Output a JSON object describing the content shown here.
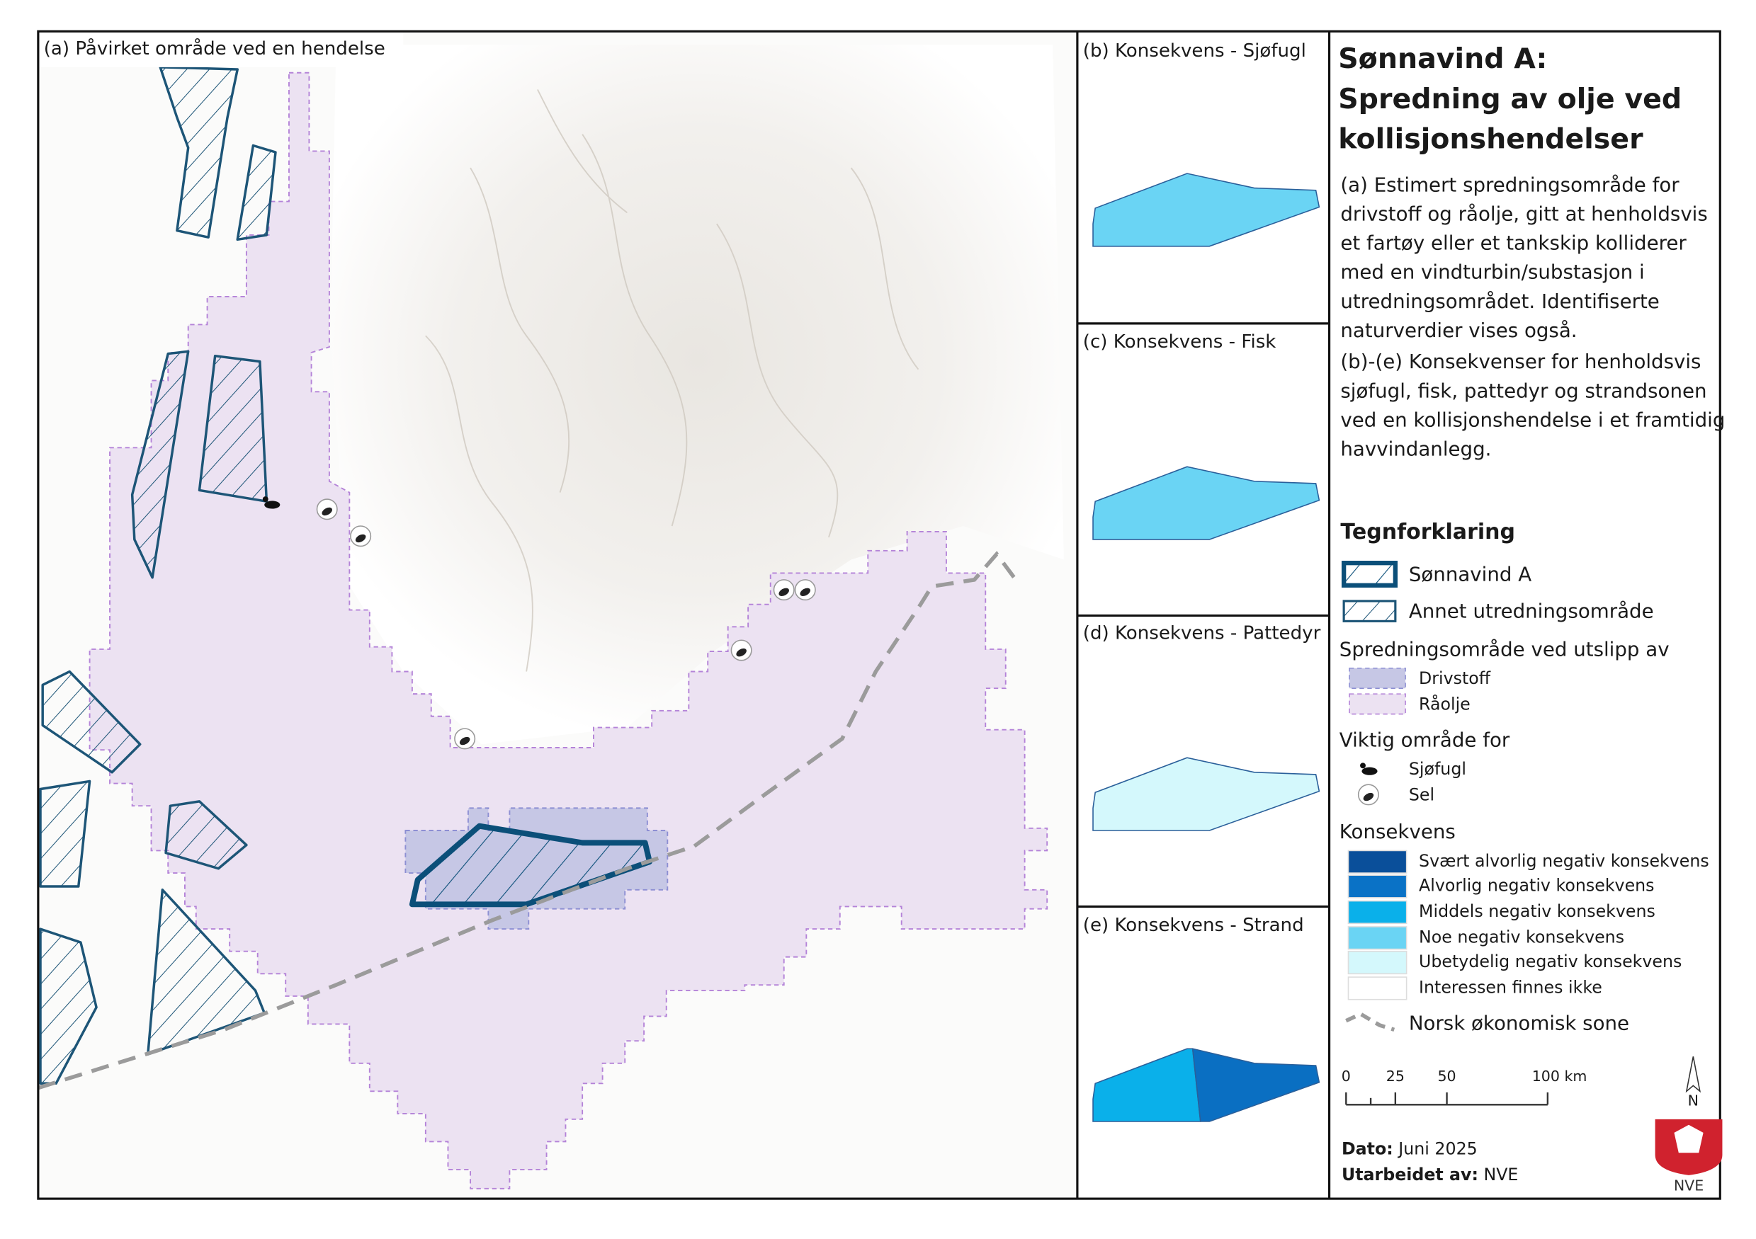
{
  "map_panel": {
    "label": "(a) Påvirket område ved en hendelse"
  },
  "small_panels": [
    {
      "label": "(b) Konsekvens - Sjøfugl"
    },
    {
      "label": "(c) Konsekvens - Fisk"
    },
    {
      "label": "(d) Konsekvens - Pattedyr"
    },
    {
      "label": "(e) Konsekvens - Strand"
    }
  ],
  "header": {
    "title": [
      "Sønnavind A:",
      "Spredning av olje ved",
      "kollisjonshendelser"
    ]
  },
  "description": [
    [
      "(a) Estimert spredningsområde for",
      "drivstoff og råolje, gitt at henholdsvis",
      "et fartøy eller et tankskip kolliderer",
      "med en vindturbin/substasjon i",
      "utredningsområdet. Identifiserte",
      "naturverdier vises også."
    ],
    [
      "(b)-(e) Konsekvenser for henholdsvis",
      "sjøfugl, fisk, pattedyr og strandsonen",
      "ved en kollisjonshendelse i et framtidig",
      "havvindanlegg."
    ]
  ],
  "legend": {
    "title": "Tegnforklaring",
    "areas": [
      "Sønnavind A",
      "Annet utredningsområde"
    ],
    "spread_title": "Spredningsområde ved utslipp av",
    "spread": [
      "Drivstoff",
      "Råolje"
    ],
    "important_title": "Viktig område for",
    "important": [
      "Sjøfugl",
      "Sel"
    ],
    "consequence_title": "Konsekvens",
    "consequence": [
      "Svært alvorlig negativ konsekvens",
      "Alvorlig negativ konsekvens",
      "Middels negativ konsekvens",
      "Noe negativ konsekvens",
      "Ubetydelig negativ konsekvens",
      "Interessen finnes ikke"
    ],
    "eez": "Norsk økonomisk sone"
  },
  "scale_bar": [
    "0",
    "25",
    "50",
    "100 km"
  ],
  "north": "N",
  "logo": "NVE",
  "footer": {
    "date": {
      "label": "Dato:",
      "value": "Juni 2025"
    },
    "author": {
      "label": "Utarbeidet av:",
      "value": "NVE"
    }
  }
}
